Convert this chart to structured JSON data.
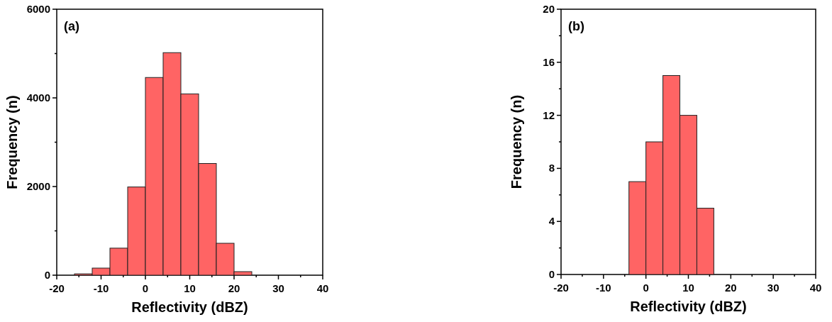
{
  "chart_data": [
    {
      "type": "histogram",
      "xlabel": "Reflectivity (dBZ)",
      "ylabel": "Frequency (n)",
      "annotations": [
        "(a)"
      ],
      "color": "#ff6464",
      "bins": [
        -16,
        -12,
        -8,
        -4,
        0,
        4,
        8,
        12,
        16,
        20,
        24
      ],
      "values": [
        30,
        160,
        610,
        1990,
        4460,
        5020,
        4090,
        2520,
        720,
        80
      ],
      "xlim": [
        -20,
        40
      ],
      "xticks": [
        -20,
        {
          "value": -15,
          "label": null
        },
        -10,
        {
          "value": -5,
          "label": null
        },
        0,
        {
          "value": 5,
          "label": null
        },
        10,
        {
          "value": 15,
          "label": null
        },
        20,
        {
          "value": 25,
          "label": null
        },
        30,
        {
          "value": 35,
          "label": null
        },
        40
      ],
      "ylim": [
        0,
        6000
      ],
      "yticks": [
        0,
        {
          "value": 1000,
          "label": null
        },
        2000,
        {
          "value": 3000,
          "label": null
        },
        4000,
        {
          "value": 5000,
          "label": null
        },
        6000
      ]
    },
    {
      "type": "histogram",
      "xlabel": "Reflectivity (dBZ)",
      "ylabel": "Frequency (n)",
      "annotations": [
        "(b)"
      ],
      "color": "#ff6464",
      "bins": [
        -4,
        0,
        4,
        8,
        12,
        16
      ],
      "values": [
        7,
        10,
        15,
        12,
        5
      ],
      "xlim": [
        -20,
        40
      ],
      "xticks": [
        -20,
        {
          "value": -15,
          "label": null
        },
        -10,
        {
          "value": -5,
          "label": null
        },
        0,
        {
          "value": 5,
          "label": null
        },
        10,
        {
          "value": 15,
          "label": null
        },
        20,
        {
          "value": 25,
          "label": null
        },
        30,
        {
          "value": 35,
          "label": null
        },
        40
      ],
      "ylim": [
        0,
        20
      ],
      "yticks": [
        0,
        {
          "value": 2,
          "label": null
        },
        4,
        {
          "value": 6,
          "label": null
        },
        8,
        {
          "value": 10,
          "label": null
        },
        12,
        {
          "value": 14,
          "label": null
        },
        16,
        {
          "value": 18,
          "label": null
        },
        20
      ]
    }
  ]
}
